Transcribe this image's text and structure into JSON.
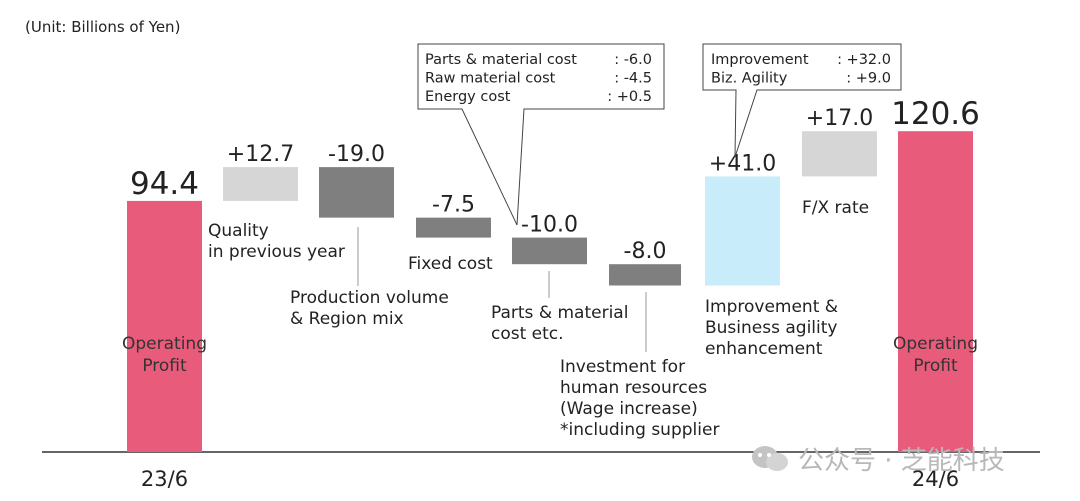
{
  "unit_label": "(Unit: Billions of Yen)",
  "watermark": "公众号 · 芝能科技",
  "colors": {
    "total": "#E85B7A",
    "positive_gray": "#D6D6D6",
    "negative": "#7F7F7F",
    "improvement": "#C9ECFA",
    "axis": "#333333"
  },
  "chart_data": {
    "type": "bar",
    "subtype": "waterfall",
    "categories": [
      "23/6",
      "Quality in previous year",
      "Production volume & Region mix",
      "Fixed cost",
      "Parts & material cost etc.",
      "Investment for human resources (Wage increase) *including supplier",
      "Improvement & Business agility enhancement",
      "F/X rate",
      "24/6"
    ],
    "values": [
      94.4,
      12.7,
      -19.0,
      -7.5,
      -10.0,
      -8.0,
      41.0,
      17.0,
      120.6
    ],
    "value_labels": [
      "94.4",
      "+12.7",
      "-19.0",
      "-7.5",
      "-10.0",
      "-8.0",
      "+41.0",
      "+17.0",
      "120.6"
    ],
    "kinds": [
      "total",
      "positive_gray",
      "negative",
      "negative",
      "negative",
      "negative",
      "improvement",
      "positive_gray",
      "total"
    ],
    "ylim": [
      0,
      130
    ],
    "x_tick_labels": [
      "23/6",
      "24/6"
    ],
    "total_inner_label": [
      "Operating",
      "Profit"
    ],
    "bar_labels": [
      [],
      [
        "Quality",
        "in previous year"
      ],
      [
        "Production volume",
        "& Region mix"
      ],
      [
        "Fixed cost"
      ],
      [
        "Parts & material",
        "cost etc."
      ],
      [
        "Investment for",
        "human resources",
        "(Wage increase)",
        "*including supplier"
      ],
      [
        "Improvement &",
        "Business agility",
        "enhancement"
      ],
      [
        "F/X rate"
      ],
      []
    ],
    "callouts": [
      {
        "for": "Parts & material cost etc.",
        "rows": [
          {
            "name": "Parts & material cost",
            "value": ": -6.0"
          },
          {
            "name": "Raw material cost",
            "value": ": -4.5"
          },
          {
            "name": "Energy cost",
            "value": ": +0.5"
          }
        ]
      },
      {
        "for": "Improvement & Business agility enhancement",
        "rows": [
          {
            "name": "Improvement",
            "value": ": +32.0"
          },
          {
            "name": "Biz. Agility",
            "value": ": +9.0"
          }
        ]
      }
    ]
  }
}
